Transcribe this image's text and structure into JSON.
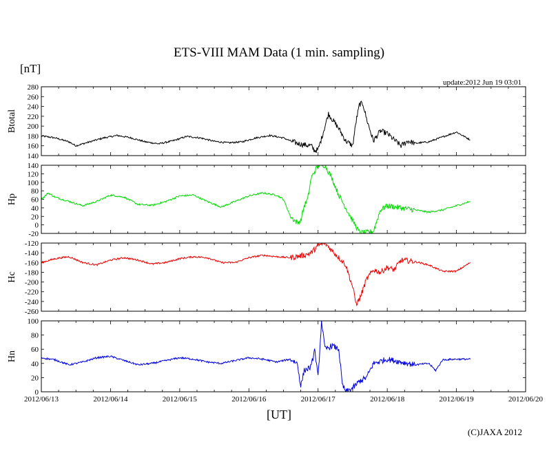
{
  "page": {
    "title": "ETS-VIII MAM Data (1 min. sampling)",
    "unit_label": "[nT]",
    "update_text": "update:2012 Jun 19 03:01",
    "x_axis_label": "[UT]",
    "copyright": "(C)JAXA 2012"
  },
  "chart_data": {
    "type": "line",
    "x_ticks": [
      "2012/06/13",
      "2012/06/14",
      "2012/06/15",
      "2012/06/16",
      "2012/06/17",
      "2012/06/18",
      "2012/06/19",
      "2012/06/20"
    ],
    "x_range_days": [
      0,
      7
    ],
    "panels": [
      {
        "name": "Btotal",
        "ylabel": "Btotal",
        "color": "#000000",
        "ylim": [
          140,
          280
        ],
        "yticks": [
          140,
          160,
          180,
          200,
          220,
          240,
          260,
          280
        ],
        "series_x_days": [
          0,
          0.2,
          0.4,
          0.5,
          0.7,
          0.9,
          1.1,
          1.3,
          1.5,
          1.7,
          1.9,
          2.1,
          2.3,
          2.5,
          2.7,
          2.9,
          3.1,
          3.3,
          3.5,
          3.6,
          3.7,
          3.8,
          3.9,
          3.95,
          4.0,
          4.05,
          4.1,
          4.15,
          4.2,
          4.3,
          4.4,
          4.5,
          4.55,
          4.6,
          4.65,
          4.7,
          4.8,
          4.85,
          4.9,
          5.0,
          5.1,
          5.2,
          5.3,
          5.4,
          5.6,
          5.8,
          6.0,
          6.2
        ],
        "series_values": [
          180,
          176,
          168,
          160,
          168,
          176,
          181,
          176,
          168,
          164,
          170,
          179,
          176,
          169,
          166,
          168,
          176,
          181,
          176,
          170,
          165,
          162,
          160,
          150,
          152,
          175,
          200,
          225,
          215,
          195,
          170,
          160,
          210,
          245,
          245,
          215,
          170,
          180,
          190,
          185,
          172,
          160,
          170,
          165,
          168,
          178,
          188,
          172
        ]
      },
      {
        "name": "Hp",
        "ylabel": "Hp",
        "color": "#00dd00",
        "ylim": [
          -20,
          140
        ],
        "yticks": [
          -20,
          0,
          20,
          40,
          60,
          80,
          100,
          120,
          140
        ],
        "series_x_days": [
          0,
          0.1,
          0.2,
          0.4,
          0.6,
          0.8,
          1.0,
          1.2,
          1.4,
          1.6,
          1.8,
          2.0,
          2.2,
          2.4,
          2.6,
          2.8,
          3.0,
          3.2,
          3.4,
          3.5,
          3.6,
          3.7,
          3.75,
          3.8,
          3.85,
          3.9,
          4.0,
          4.1,
          4.2,
          4.3,
          4.4,
          4.5,
          4.6,
          4.7,
          4.8,
          4.9,
          5.0,
          5.2,
          5.4,
          5.6,
          5.8,
          6.0,
          6.2
        ],
        "series_values": [
          60,
          75,
          65,
          55,
          45,
          55,
          70,
          65,
          48,
          46,
          55,
          68,
          70,
          55,
          42,
          55,
          68,
          75,
          70,
          60,
          20,
          5,
          10,
          45,
          60,
          110,
          140,
          140,
          110,
          70,
          40,
          10,
          -18,
          -18,
          -15,
          35,
          45,
          40,
          35,
          30,
          35,
          45,
          55
        ]
      },
      {
        "name": "Hc",
        "ylabel": "Hc",
        "color": "#ee0000",
        "ylim": [
          -260,
          -120
        ],
        "yticks": [
          -260,
          -240,
          -220,
          -200,
          -180,
          -160,
          -140,
          -120
        ],
        "series_x_days": [
          0,
          0.2,
          0.4,
          0.6,
          0.8,
          1.0,
          1.2,
          1.4,
          1.6,
          1.8,
          2.0,
          2.2,
          2.4,
          2.6,
          2.8,
          3.0,
          3.2,
          3.4,
          3.6,
          3.8,
          3.9,
          4.0,
          4.1,
          4.2,
          4.3,
          4.4,
          4.5,
          4.55,
          4.6,
          4.7,
          4.8,
          4.9,
          5.0,
          5.1,
          5.2,
          5.4,
          5.6,
          5.8,
          6.0,
          6.2
        ],
        "series_values": [
          -160,
          -152,
          -148,
          -160,
          -165,
          -155,
          -150,
          -155,
          -163,
          -160,
          -152,
          -148,
          -150,
          -160,
          -160,
          -150,
          -145,
          -148,
          -150,
          -145,
          -140,
          -125,
          -120,
          -135,
          -150,
          -165,
          -210,
          -245,
          -235,
          -195,
          -175,
          -180,
          -170,
          -175,
          -155,
          -158,
          -165,
          -178,
          -178,
          -160
        ]
      },
      {
        "name": "Hn",
        "ylabel": "Hn",
        "color": "#0000dd",
        "ylim": [
          0,
          100
        ],
        "yticks": [
          0,
          20,
          40,
          60,
          80,
          100
        ],
        "series_x_days": [
          0,
          0.2,
          0.4,
          0.6,
          0.8,
          1.0,
          1.2,
          1.4,
          1.6,
          1.8,
          2.0,
          2.2,
          2.4,
          2.6,
          2.8,
          3.0,
          3.2,
          3.4,
          3.6,
          3.7,
          3.75,
          3.8,
          3.9,
          3.95,
          4.0,
          4.05,
          4.1,
          4.2,
          4.3,
          4.35,
          4.4,
          4.5,
          4.6,
          4.7,
          4.8,
          5.0,
          5.2,
          5.4,
          5.6,
          5.7,
          5.8,
          6.0,
          6.2
        ],
        "series_values": [
          48,
          45,
          38,
          42,
          48,
          50,
          44,
          38,
          40,
          44,
          48,
          46,
          42,
          40,
          44,
          48,
          46,
          42,
          46,
          40,
          8,
          30,
          35,
          60,
          20,
          100,
          60,
          65,
          60,
          10,
          0,
          5,
          15,
          20,
          40,
          46,
          42,
          38,
          40,
          30,
          45,
          46,
          46
        ]
      }
    ]
  }
}
